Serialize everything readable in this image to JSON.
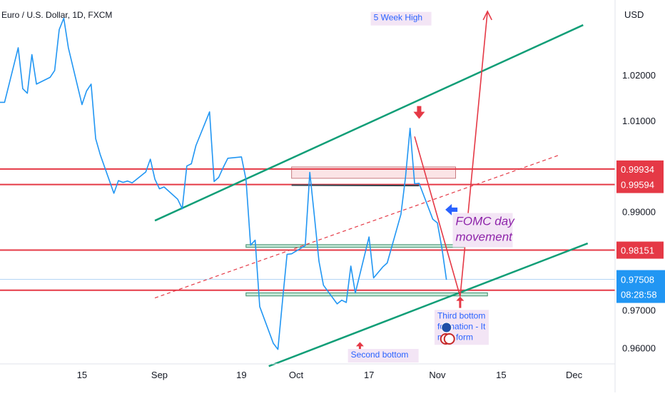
{
  "chart_data": {
    "type": "line",
    "title": "Euro / U.S. Dollar, 1D, FXCM",
    "currency": "USD",
    "series": [
      {
        "values": [
          [
            "2022-07-28",
            1.014
          ],
          [
            "2022-07-29",
            1.014
          ],
          [
            "2022-08-01",
            1.026
          ],
          [
            "2022-08-02",
            1.017
          ],
          [
            "2022-08-03",
            1.016
          ],
          [
            "2022-08-04",
            1.0245
          ],
          [
            "2022-08-05",
            1.018
          ],
          [
            "2022-08-08",
            1.0195
          ],
          [
            "2022-08-09",
            1.021
          ],
          [
            "2022-08-10",
            1.03
          ],
          [
            "2022-08-11",
            1.0325
          ],
          [
            "2022-08-12",
            1.026
          ],
          [
            "2022-08-15",
            1.0135
          ],
          [
            "2022-08-16",
            1.0165
          ],
          [
            "2022-08-17",
            1.018
          ],
          [
            "2022-08-18",
            1.006
          ],
          [
            "2022-08-19",
            1.0025
          ],
          [
            "2022-08-22",
            0.994
          ],
          [
            "2022-08-23",
            0.9968
          ],
          [
            "2022-08-24",
            0.9964
          ],
          [
            "2022-08-25",
            0.9967
          ],
          [
            "2022-08-26",
            0.9963
          ],
          [
            "2022-08-29",
            0.9987
          ],
          [
            "2022-08-30",
            1.0015
          ],
          [
            "2022-08-31",
            0.9971
          ],
          [
            "2022-09-01",
            0.995
          ],
          [
            "2022-09-02",
            0.9954
          ],
          [
            "2022-09-05",
            0.9927
          ],
          [
            "2022-09-06",
            0.9906
          ],
          [
            "2022-09-07",
            1.0
          ],
          [
            "2022-09-08",
            1.0005
          ],
          [
            "2022-09-09",
            1.0045
          ],
          [
            "2022-09-12",
            1.0119
          ],
          [
            "2022-09-13",
            0.9966
          ],
          [
            "2022-09-14",
            0.9975
          ],
          [
            "2022-09-15",
            0.9997
          ],
          [
            "2022-09-16",
            1.0017
          ],
          [
            "2022-09-19",
            1.002
          ],
          [
            "2022-09-20",
            0.997
          ],
          [
            "2022-09-21",
            0.9826
          ],
          [
            "2022-09-22",
            0.9837
          ],
          [
            "2022-09-23",
            0.9691
          ],
          [
            "2022-09-26",
            0.961
          ],
          [
            "2022-09-27",
            0.9597
          ],
          [
            "2022-09-28",
            0.9703
          ],
          [
            "2022-09-29",
            0.9806
          ],
          [
            "2022-09-30",
            0.9807
          ],
          [
            "2022-10-03",
            0.9825
          ],
          [
            "2022-10-04",
            0.9986
          ],
          [
            "2022-10-05",
            0.989
          ],
          [
            "2022-10-06",
            0.9791
          ],
          [
            "2022-10-07",
            0.9738
          ],
          [
            "2022-10-10",
            0.9697
          ],
          [
            "2022-10-11",
            0.9705
          ],
          [
            "2022-10-12",
            0.97
          ],
          [
            "2022-10-13",
            0.978
          ],
          [
            "2022-10-14",
            0.9721
          ],
          [
            "2022-10-17",
            0.9844
          ],
          [
            "2022-10-18",
            0.9754
          ],
          [
            "2022-10-19",
            0.9766
          ],
          [
            "2022-10-20",
            0.9778
          ],
          [
            "2022-10-21",
            0.9787
          ],
          [
            "2022-10-24",
            0.9894
          ],
          [
            "2022-10-25",
            0.9975
          ],
          [
            "2022-10-26",
            1.0083
          ],
          [
            "2022-10-27",
            0.9961
          ],
          [
            "2022-10-28",
            0.9962
          ],
          [
            "2022-10-31",
            0.9883
          ],
          [
            "2022-11-01",
            0.9875
          ],
          [
            "2022-11-02",
            0.9819
          ],
          [
            "2022-11-03",
            0.975
          ]
        ]
      }
    ],
    "xlim": [
      "2022-07-28",
      "2022-12-10"
    ],
    "x_ticks": [
      {
        "label": "15",
        "date": "2022-08-15"
      },
      {
        "label": "Sep",
        "date": "2022-09-01"
      },
      {
        "label": "19",
        "date": "2022-09-19"
      },
      {
        "label": "Oct",
        "date": "2022-10-01"
      },
      {
        "label": "17",
        "date": "2022-10-17"
      },
      {
        "label": "Nov",
        "date": "2022-11-01"
      },
      {
        "label": "15",
        "date": "2022-11-15"
      },
      {
        "label": "Dec",
        "date": "2022-12-01"
      }
    ],
    "ylim": [
      0.9565,
      1.0365
    ],
    "y_ticks": [
      {
        "label": "1.02000",
        "value": 1.02
      },
      {
        "label": "1.01000",
        "value": 1.01
      },
      {
        "label": "0.99000",
        "value": 0.99
      },
      {
        "label": "0.96000",
        "value": 0.96
      }
    ],
    "horizontal_levels": [
      {
        "label": "0.99934",
        "value": 0.99934,
        "color": "#e53946"
      },
      {
        "label": "0.99594",
        "value": 0.99594,
        "color": "#e53946"
      },
      {
        "label": "0.98151",
        "value": 0.98151,
        "color": "#e53946"
      },
      {
        "label": "",
        "value": 0.9727,
        "color": "#e53946"
      }
    ],
    "last_price": {
      "label": "0.97508",
      "value": 0.97508,
      "countdown": "08:28:58",
      "color": "#2196f3"
    },
    "partial_tick_label": "0.97000",
    "channel_lines": [
      {
        "kind": "upper",
        "from": [
          "2022-08-31",
          0.988
        ],
        "to": [
          "2022-12-03",
          1.031
        ],
        "color": "#109e77"
      },
      {
        "kind": "lower",
        "from": [
          "2022-09-25",
          0.956
        ],
        "to": [
          "2022-12-04",
          0.983
        ],
        "color": "#109e77"
      },
      {
        "kind": "mid",
        "from": [
          "2022-08-31",
          0.971
        ],
        "to": [
          "2022-11-28",
          1.0025
        ],
        "color": "#e53946",
        "dashed": true
      }
    ],
    "neckline": {
      "from": [
        "2022-09-30",
        0.9958
      ],
      "to": [
        "2022-10-28",
        0.9957
      ],
      "color": "#37474f"
    },
    "zones": [
      {
        "from": [
          "2022-09-30",
          0.9998
        ],
        "to": [
          "2022-11-05",
          0.9973
        ],
        "fill": "#fbe4e6",
        "stroke": "#c77a80"
      },
      {
        "from": [
          "2022-09-20",
          0.98272
        ],
        "to": [
          "2022-11-07",
          0.98212
        ],
        "fill": "#c5e9d8",
        "stroke": "#3d8c6a"
      },
      {
        "from": [
          "2022-09-20",
          0.97213
        ],
        "to": [
          "2022-11-12",
          0.97144
        ],
        "fill": "#c5e9d8",
        "stroke": "#3d8c6a"
      }
    ],
    "projection_path": [
      [
        "2022-10-27",
        1.0065
      ],
      [
        "2022-11-06",
        0.9713
      ],
      [
        "2022-11-12",
        1.034
      ]
    ],
    "projection_color": "#e53946",
    "annotations": [
      {
        "text": "5 Week High",
        "at": [
          "2022-10-18",
          1.032
        ],
        "color": "#2962ff",
        "bg": "#f3e5f5"
      },
      {
        "text": "FOMC day movement",
        "lines": [
          "FOMC day",
          "movement"
        ],
        "at": [
          "2022-11-05",
          0.987
        ],
        "color": "#8e24aa",
        "bg": "#f3e5f5",
        "italic": true
      },
      {
        "text": "Third  bottom formation - It may form",
        "lines": [
          "Third  bottom",
          "formation - It",
          "may form"
        ],
        "at": [
          "2022-11-01",
          0.9665
        ],
        "color": "#2962ff",
        "bg": "#f3e5f5"
      },
      {
        "text": "Second bottom",
        "at": [
          "2022-10-13",
          0.9579
        ],
        "color": "#2962ff",
        "bg": "#f3e5f5"
      }
    ],
    "markers": [
      {
        "name": "down-arrow-5-week-high",
        "at": [
          "2022-10-28",
          1.011
        ],
        "color": "#e53946",
        "direction": "down"
      },
      {
        "name": "fomc-pointer-arrow",
        "at": [
          "2022-11-04",
          0.9904
        ],
        "color": "#2962ff",
        "direction": "left"
      },
      {
        "name": "second-bottom-up-arrow",
        "at": [
          "2022-10-15",
          0.961
        ],
        "color": "#e53946",
        "direction": "up"
      },
      {
        "name": "third-bottom-up-arrow",
        "at": [
          "2022-11-06",
          0.971
        ],
        "color": "#e53946",
        "direction": "up"
      }
    ],
    "grid": false,
    "legend": "none"
  }
}
